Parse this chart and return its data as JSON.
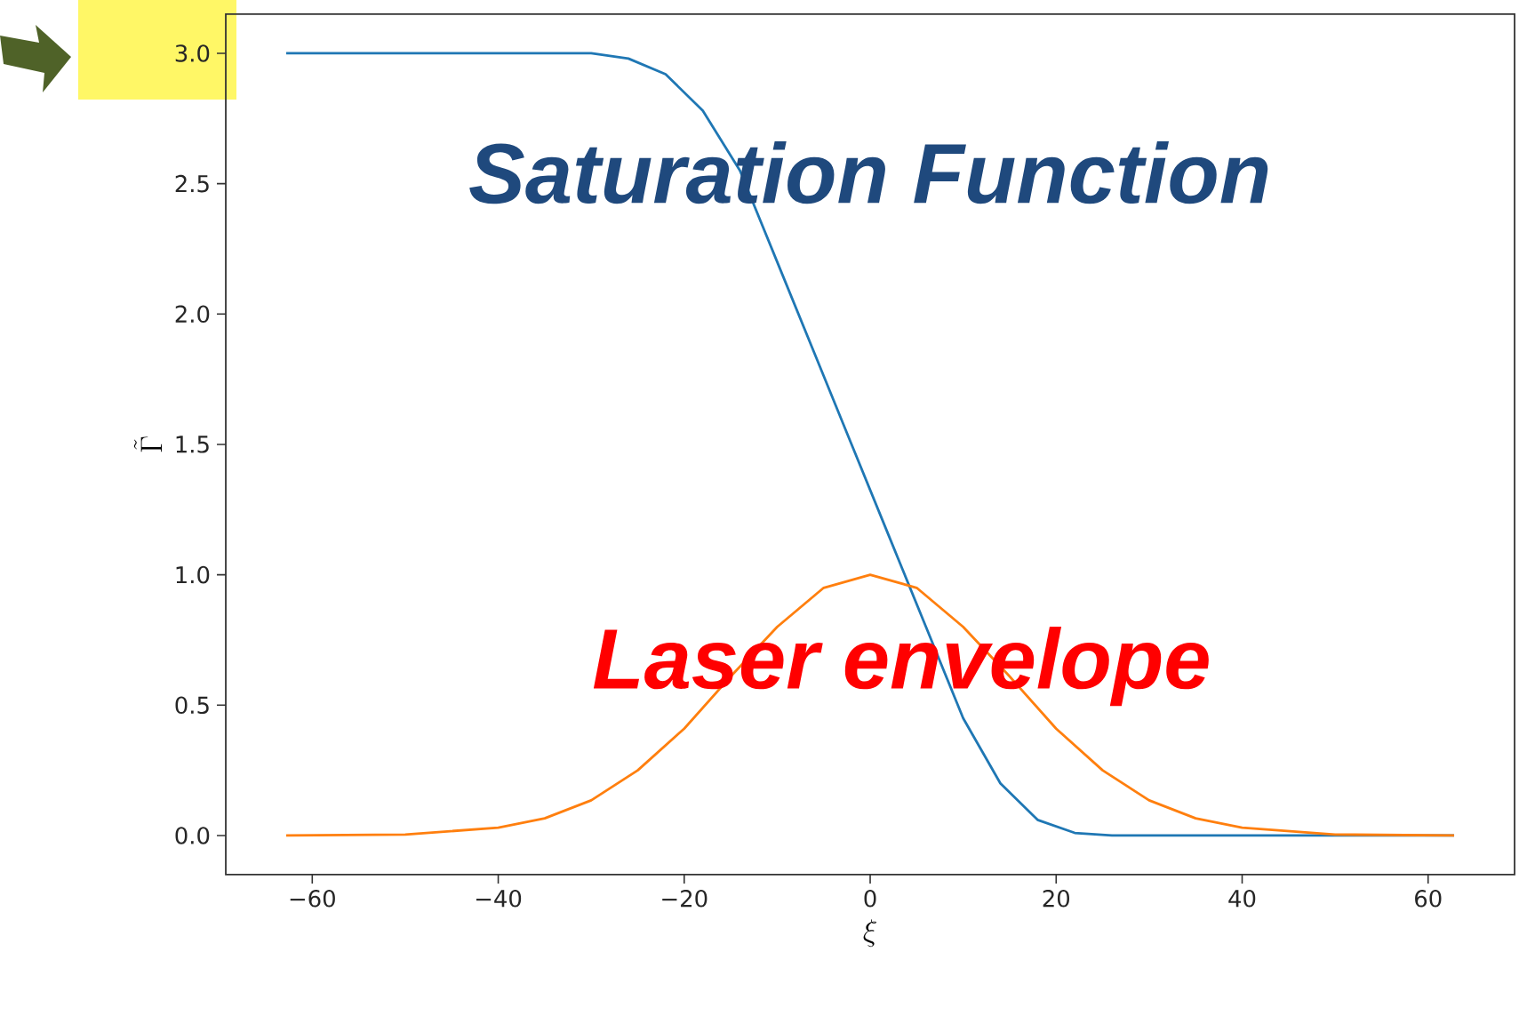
{
  "chart_data": {
    "type": "line",
    "xlabel": "\\xi",
    "ylabel": "\\tilde{\\Gamma}",
    "series": [
      {
        "color": "#1f77b4",
        "x": [
          -62.8,
          -30,
          -26,
          -22,
          -18,
          -14,
          -10,
          -6,
          -2,
          2,
          6,
          10,
          14,
          18,
          22,
          26,
          62.8
        ],
        "values": [
          3.0,
          3.0,
          2.98,
          2.92,
          2.78,
          2.55,
          2.2,
          1.85,
          1.5,
          1.15,
          0.8,
          0.45,
          0.2,
          0.06,
          0.01,
          0.0,
          0.0
        ]
      },
      {
        "color": "#ff7f0e",
        "x": [
          -62.8,
          -50,
          -40,
          -35,
          -30,
          -25,
          -20,
          -15,
          -10,
          -5,
          0,
          5,
          10,
          15,
          20,
          25,
          30,
          35,
          40,
          50,
          62.8
        ],
        "values": [
          0.0,
          0.004,
          0.03,
          0.066,
          0.135,
          0.25,
          0.41,
          0.61,
          0.8,
          0.95,
          1.0,
          0.95,
          0.8,
          0.61,
          0.41,
          0.25,
          0.135,
          0.066,
          0.03,
          0.004,
          0.0
        ]
      }
    ],
    "annotations": [
      "Saturation Function",
      "Laser envelope"
    ],
    "xlim": [
      -69.3,
      69.3
    ],
    "ylim": [
      -0.15,
      3.15
    ],
    "xticks": [
      {
        "value": -60,
        "label": "−60"
      },
      {
        "value": -40,
        "label": "−40"
      },
      {
        "value": -20,
        "label": "−20"
      },
      0,
      20,
      40,
      60
    ],
    "yticks": [
      {
        "value": 0,
        "label": "0.0"
      },
      0.5,
      {
        "value": 1,
        "label": "1.0"
      },
      1.5,
      {
        "value": 2,
        "label": "2.0"
      },
      2.5,
      {
        "value": 3,
        "label": "3.0"
      }
    ],
    "grid": false,
    "marker": "none",
    "line_style": "solid"
  }
}
